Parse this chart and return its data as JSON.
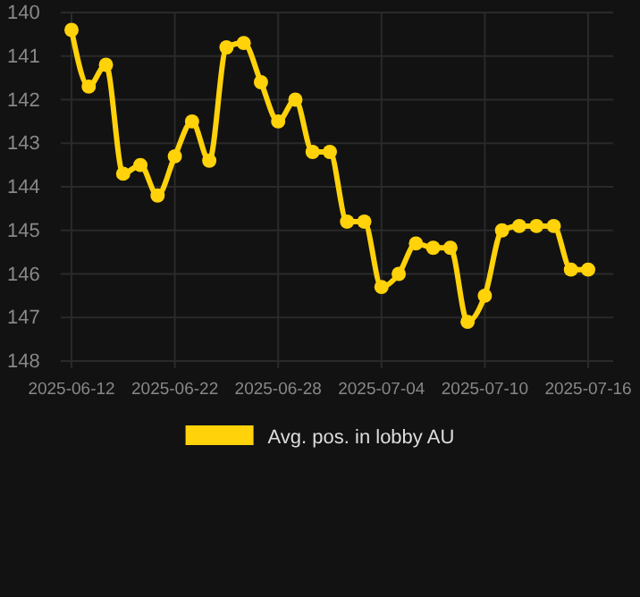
{
  "chart_data": {
    "type": "line",
    "categories": [
      "2025-06-12",
      null,
      null,
      null,
      null,
      null,
      "2025-06-22",
      null,
      null,
      null,
      null,
      null,
      "2025-06-28",
      null,
      null,
      null,
      null,
      null,
      "2025-07-04",
      null,
      null,
      null,
      null,
      null,
      "2025-07-10",
      null,
      null,
      null,
      null,
      null,
      "2025-07-16"
    ],
    "series": [
      {
        "name": "Avg. pos. in lobby AU",
        "color": "#ffd20a",
        "values": [
          140.4,
          141.7,
          141.2,
          143.7,
          143.5,
          144.2,
          143.3,
          142.5,
          143.4,
          140.8,
          140.7,
          141.6,
          142.5,
          142.0,
          143.2,
          143.2,
          144.8,
          144.8,
          146.3,
          146.0,
          145.3,
          145.4,
          145.4,
          147.1,
          146.5,
          145.0,
          144.9,
          144.9,
          144.9,
          145.9,
          145.9
        ]
      }
    ],
    "ylim": [
      148,
      140
    ],
    "yticks": [
      140,
      141,
      142,
      143,
      144,
      145,
      146,
      147,
      148
    ],
    "grid": true,
    "legend": "bottom",
    "marker": "circle",
    "line_style": "solid"
  }
}
